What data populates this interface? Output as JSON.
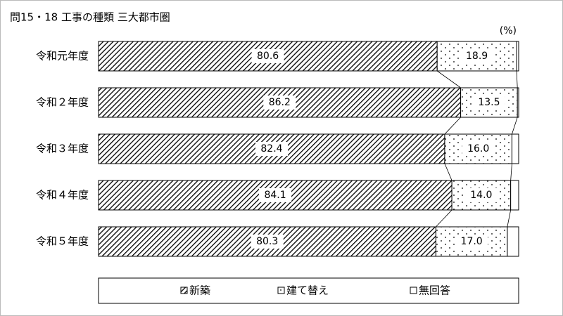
{
  "chart_data": {
    "type": "stacked_bar_horizontal",
    "title": "問15・18 工事の種類 三大都市圏",
    "unit": "(%)",
    "categories": [
      "令和元年度",
      "令和２年度",
      "令和３年度",
      "令和４年度",
      "令和５年度"
    ],
    "xlim": [
      0,
      100
    ],
    "series": [
      {
        "name": "新築",
        "color": "#000000",
        "pattern": "hatch",
        "values": [
          80.6,
          86.2,
          82.4,
          84.1,
          80.3
        ]
      },
      {
        "name": "建て替え",
        "color": "#000000",
        "pattern": "dots",
        "values": [
          18.9,
          13.5,
          16.0,
          14.0,
          17.0
        ],
        "value_labels": [
          "18.9",
          "13.5",
          "16.0",
          "14.0",
          "17.0"
        ]
      },
      {
        "name": "無回答",
        "color": "#000000",
        "pattern": "none",
        "values": [
          0.5,
          0.3,
          1.6,
          1.9,
          2.7
        ]
      }
    ]
  }
}
